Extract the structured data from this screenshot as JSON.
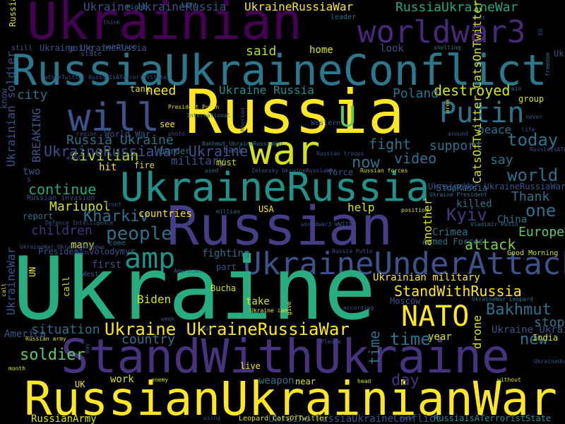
{
  "palette": {
    "background": "#000000",
    "purple": "#440154",
    "indigo": "#3b528b",
    "teal": "#21918c",
    "green": "#27ad81",
    "yellow": "#fde725"
  },
  "words": [
    {
      "id": "ukrainian",
      "text": "Ukrainian",
      "color": "#440154"
    },
    {
      "id": "worldwar3",
      "text": "worldwar3",
      "color": "#482878"
    },
    {
      "id": "russiaukraineconflict",
      "text": "RussiaUkraineConflict",
      "color": "#2a788e"
    },
    {
      "id": "russia",
      "text": "Russia",
      "color": "#fde725"
    },
    {
      "id": "war",
      "text": "war",
      "color": "#d5e21a"
    },
    {
      "id": "will",
      "text": "will",
      "color": "#3b528b"
    },
    {
      "id": "putin",
      "text": "Putin",
      "color": "#2c728e"
    },
    {
      "id": "u",
      "text": "U",
      "color": "#5ec962"
    },
    {
      "id": "ukrainerussia",
      "text": "UkraineRussia",
      "color": "#21918c"
    },
    {
      "id": "russian",
      "text": "Russian",
      "color": "#433e85"
    },
    {
      "id": "ukraineunderattack",
      "text": "UkraineUnderAttack",
      "color": "#3b528b"
    },
    {
      "id": "amp",
      "text": "amp",
      "color": "#21918c"
    },
    {
      "id": "ukraine",
      "text": "Ukraine",
      "color": "#27ad81"
    },
    {
      "id": "nato",
      "text": "NATO",
      "color": "#fde725"
    },
    {
      "id": "standwithukraine",
      "text": "StandWithUkraine",
      "color": "#46327e"
    },
    {
      "id": "russianukrainianwar",
      "text": "RussianUkrainianWar",
      "color": "#fde725"
    },
    {
      "id": "ukraine-ukrainerussiawar",
      "text": "Ukraine UkraineRussiaWar",
      "color": "#fde725"
    },
    {
      "id": "standwithrussia",
      "text": "StandWithRussia",
      "color": "#fde725"
    },
    {
      "id": "bakhmut",
      "text": "Bakhmut",
      "color": "#2c728e"
    },
    {
      "id": "people",
      "text": "people",
      "color": "#2c728e"
    },
    {
      "id": "said",
      "text": "said",
      "color": "#b5de2b"
    },
    {
      "id": "destroyed",
      "text": "destroyed",
      "color": "#d8e219"
    },
    {
      "id": "today",
      "text": "today",
      "color": "#2c728e"
    },
    {
      "id": "world",
      "text": "world",
      "color": "#2c728e"
    },
    {
      "id": "one",
      "text": "one",
      "color": "#2c728e"
    },
    {
      "id": "kyiv",
      "text": "Kyiv",
      "color": "#443983"
    },
    {
      "id": "europe",
      "text": "Europe",
      "color": "#5ec962"
    },
    {
      "id": "attack",
      "text": "attack",
      "color": "#7ad151"
    },
    {
      "id": "new",
      "text": "new",
      "color": "#2c728e"
    },
    {
      "id": "stop",
      "text": "stop",
      "color": "#2c728e"
    },
    {
      "id": "time",
      "text": "time",
      "color": "#2c728e"
    },
    {
      "id": "country",
      "text": "country",
      "color": "#2c728e"
    },
    {
      "id": "situation",
      "text": "situation",
      "color": "#2c728e"
    },
    {
      "id": "soldier",
      "text": "soldier",
      "color": "#5ec962"
    },
    {
      "id": "day",
      "text": "day",
      "color": "#46327e"
    },
    {
      "id": "children",
      "text": "children",
      "color": "#46327e"
    },
    {
      "id": "continue",
      "text": "continue",
      "color": "#22a884"
    },
    {
      "id": "civilian",
      "text": "civilian",
      "color": "#b5de2b"
    },
    {
      "id": "mariupol",
      "text": "Mariupol",
      "color": "#d8e219"
    },
    {
      "id": "kharkiv",
      "text": "Kharkiv",
      "color": "#2c728e"
    },
    {
      "id": "now",
      "text": "now",
      "color": "#2c728e"
    },
    {
      "id": "video",
      "text": "video",
      "color": "#2c728e"
    },
    {
      "id": "support",
      "text": "support",
      "color": "#2c728e"
    },
    {
      "id": "fight",
      "text": "fight",
      "color": "#2c728e"
    },
    {
      "id": "say",
      "text": "say",
      "color": "#2c728e"
    },
    {
      "id": "thank",
      "text": "Thank",
      "color": "#2c728e"
    },
    {
      "id": "peace",
      "text": "peace",
      "color": "#2c728e"
    },
    {
      "id": "need",
      "text": "need",
      "color": "#fde725"
    },
    {
      "id": "city",
      "text": "city",
      "color": "#2c728e"
    },
    {
      "id": "russia-ukraine",
      "text": "Russia Ukraine",
      "color": "#2c728e"
    },
    {
      "id": "ukraine-russia",
      "text": "Ukraine Russia",
      "color": "#21918c"
    },
    {
      "id": "russiaukrainewar",
      "text": "RussiaUkraineWar",
      "color": "#22a884"
    },
    {
      "id": "ukrainerussiawar",
      "text": "UkraineRussiaWar",
      "color": "#fde725"
    },
    {
      "id": "ukraine-ukrainerussia",
      "text": "Ukraine UkraineRussia",
      "color": "#3b528b"
    },
    {
      "id": "poland",
      "text": "Poland",
      "color": "#2c728e"
    },
    {
      "id": "two",
      "text": "two",
      "color": "#3b528b"
    },
    {
      "id": "breaking",
      "text": "BREAKING",
      "color": "#3b528b"
    },
    {
      "id": "military",
      "text": "military",
      "color": "#3b528b"
    },
    {
      "id": "help",
      "text": "help",
      "color": "#d8e219"
    },
    {
      "id": "killed",
      "text": "killed",
      "color": "#2c728e"
    },
    {
      "id": "crimea",
      "text": "Crimea",
      "color": "#2c728e"
    },
    {
      "id": "armed-forces",
      "text": "Armed Forces",
      "color": "#2c728e"
    },
    {
      "id": "fighting",
      "text": "fighting",
      "color": "#2c728e"
    },
    {
      "id": "biden",
      "text": "Biden",
      "color": "#d8e219"
    },
    {
      "id": "take",
      "text": "take",
      "color": "#d8e219"
    },
    {
      "id": "many",
      "text": "many",
      "color": "#d8e219"
    },
    {
      "id": "first",
      "text": "first",
      "color": "#3b528b"
    },
    {
      "id": "live",
      "text": "live",
      "color": "#fde725"
    },
    {
      "id": "uk",
      "text": "UK",
      "color": "#fde725"
    },
    {
      "id": "work",
      "text": "work",
      "color": "#d8e219"
    },
    {
      "id": "weapon",
      "text": "weapon",
      "color": "#2c728e"
    },
    {
      "id": "near",
      "text": "near",
      "color": "#d8e219"
    },
    {
      "id": "russianarmy",
      "text": "RussianArmy",
      "color": "#d8e219"
    },
    {
      "id": "ukraine-russiaukraineconflict",
      "text": "Ukraine RussiaUkraineConflict",
      "color": "#3b528b"
    },
    {
      "id": "russiaisaterroriststate",
      "text": "RussiaIsATerroristState",
      "color": "#21918c"
    },
    {
      "id": "ukrainian-military",
      "text": "Ukrainian military",
      "color": "#fde725"
    },
    {
      "id": "ukraine-ukraineunderattack",
      "text": "Ukraine UkraineUnderAttack",
      "color": "#3b528b"
    },
    {
      "id": "india",
      "text": "India",
      "color": "#d8e219"
    },
    {
      "id": "america",
      "text": "America",
      "color": "#3b528b"
    },
    {
      "id": "year",
      "text": "year",
      "color": "#d8e219"
    },
    {
      "id": "moscow",
      "text": "Moscow",
      "color": "#3b528b"
    },
    {
      "id": "president-volodymyr",
      "text": "President Volodymyr",
      "color": "#3b528b"
    },
    {
      "id": "report",
      "text": "report",
      "color": "#2c728e"
    },
    {
      "id": "countries",
      "text": "countries",
      "color": "#fde725"
    },
    {
      "id": "hit",
      "text": "hit",
      "color": "#fde725"
    },
    {
      "id": "fire",
      "text": "fire",
      "color": "#d8e219"
    },
    {
      "id": "must",
      "text": "must",
      "color": "#d8e219"
    },
    {
      "id": "force",
      "text": "force",
      "color": "#3b528b"
    },
    {
      "id": "back",
      "text": "back",
      "color": "#3b528b"
    },
    {
      "id": "usa",
      "text": "USA",
      "color": "#fde725"
    },
    {
      "id": "stoprussia",
      "text": "StopRussia",
      "color": "#2c728e"
    },
    {
      "id": "bucha",
      "text": "Bucha",
      "color": "#d8e219"
    },
    {
      "id": "part",
      "text": "part",
      "color": "#3b528b"
    },
    {
      "id": "home",
      "text": "home",
      "color": "#d8e219"
    },
    {
      "id": "look",
      "text": "look",
      "color": "#3b528b"
    },
    {
      "id": "want",
      "text": "want",
      "color": "#d8e219"
    },
    {
      "id": "ukraine-ukrainerussia-2",
      "text": "Ukraine UkraineRussia",
      "color": "#3b528b"
    },
    {
      "id": "going",
      "text": "going",
      "color": "#3b528b"
    },
    {
      "id": "tank",
      "text": "tank",
      "color": "#d8e219"
    },
    {
      "id": "see",
      "text": "see",
      "color": "#fde725"
    },
    {
      "id": "border",
      "text": "border",
      "color": "#2c728e"
    },
    {
      "id": "world-war",
      "text": "World War",
      "color": "#3b528b"
    },
    {
      "id": "group",
      "text": "group",
      "color": "#d8e219"
    },
    {
      "id": "china",
      "text": "China",
      "color": "#2c728e"
    },
    {
      "id": "area",
      "text": "area",
      "color": "#d8e219"
    },
    {
      "id": "left",
      "text": "left",
      "color": "#2c728e"
    },
    {
      "id": "right",
      "text": "right",
      "color": "#2c728e"
    },
    {
      "id": "leader",
      "text": "leader",
      "color": "#2c728e"
    },
    {
      "id": "russian-soldier",
      "text": "Russian soldier",
      "color": "#d8e219"
    },
    {
      "id": "still",
      "text": "still",
      "color": "#3b528b"
    },
    {
      "id": "state",
      "text": "state",
      "color": "#3b528b"
    },
    {
      "id": "sanction",
      "text": "sanction",
      "color": "#3b528b"
    },
    {
      "id": "ukrainewar-ukrainerussiawar",
      "text": "UkraineWar UkraineRussiaWar",
      "color": "#3b528b"
    },
    {
      "id": "ukrainerussiawar-ukraine",
      "text": "UkraineRussiaWar Ukraine",
      "color": "#3b528b"
    },
    {
      "id": "breaking-small",
      "text": "s",
      "color": "#3b528b"
    },
    {
      "id": "russian-invasion",
      "text": "Russian invasion",
      "color": "#3b528b"
    },
    {
      "id": "defence-intelligence",
      "text": "Defence Intelligence",
      "color": "#3b528b"
    },
    {
      "id": "catsoftwitter",
      "text": "CatsOfTwitter CatsOnTwitter",
      "color": "#d8e219"
    },
    {
      "id": "another",
      "text": "another",
      "color": "#d8e219"
    },
    {
      "id": "drone",
      "text": "drone",
      "color": "#d8e219"
    },
    {
      "id": "call",
      "text": "call",
      "color": "#d8e219"
    },
    {
      "id": "west",
      "text": "West",
      "color": "#3b528b"
    },
    {
      "id": "un",
      "text": "UN",
      "color": "#fde725"
    },
    {
      "id": "know",
      "text": "know",
      "color": "#3b528b"
    },
    {
      "id": "ukrainian-soldier",
      "text": "Ukrainian soldier",
      "color": "#3b528b"
    },
    {
      "id": "ukrainewar-vert",
      "text": "UkraineWar",
      "color": "#3b528b"
    },
    {
      "id": "ukraineunderattack-vert",
      "text": "UkraineUnderAttack",
      "color": "#3b528b"
    },
    {
      "id": "catsontwitter-vert",
      "text": "CatsOnTwitter RussiaIsATerroristState",
      "color": "#3b528b"
    },
    {
      "id": "eu",
      "text": "EU",
      "color": "#3b528b"
    },
    {
      "id": "freedom",
      "text": "freedom",
      "color": "#2c728e"
    },
    {
      "id": "shelling",
      "text": "shelling",
      "color": "#2c728e"
    },
    {
      "id": "train",
      "text": "train",
      "color": "#2c728e"
    },
    {
      "id": "russiaisaterroriststate-small",
      "text": "RussiaIsATerroristState UkraineWarNews",
      "color": "#3b528b"
    },
    {
      "id": "ukraine-president",
      "text": "Ukraine President",
      "color": "#2c728e"
    },
    {
      "id": "vladimir-putin",
      "text": "Vladimir Putin",
      "color": "#2c728e"
    },
    {
      "id": "ukrainewar-leopard",
      "text": "UkraineWar Leopard",
      "color": "#2c728e"
    },
    {
      "id": "good-morning",
      "text": "Good Morning",
      "color": "#d8e219"
    },
    {
      "id": "zelensky",
      "text": "Zelensky UkraineRussiaWar",
      "color": "#3b528b"
    },
    {
      "id": "russian-forces",
      "text": "Russian forces",
      "color": "#d8e219"
    },
    {
      "id": "russian-troops",
      "text": "Russian troops",
      "color": "#3b528b"
    },
    {
      "id": "bakhmut-small",
      "text": "Bakhmut UkraineRussiaWar",
      "color": "#2c728e"
    },
    {
      "id": "international",
      "text": "International",
      "color": "#2c728e"
    },
    {
      "id": "president-putin",
      "text": "President Putin",
      "color": "#d8e219"
    },
    {
      "id": "kherson",
      "text": "Kherson",
      "color": "#3b528b"
    },
    {
      "id": "western",
      "text": "Western",
      "color": "#3b528b"
    },
    {
      "id": "region",
      "text": "region",
      "color": "#3b528b"
    },
    {
      "id": "even",
      "text": "even",
      "color": "#3b528b"
    },
    {
      "id": "photo",
      "text": "photo",
      "color": "#3b528b"
    },
    {
      "id": "think",
      "text": "think",
      "color": "#3b528b"
    },
    {
      "id": "shot",
      "text": "shot",
      "color": "#3b528b"
    },
    {
      "id": "position",
      "text": "position",
      "color": "#d8e219"
    },
    {
      "id": "worldwar3-small",
      "text": "worldwar3 WWIII",
      "color": "#3b528b"
    },
    {
      "id": "million",
      "text": "million",
      "color": "#2c728e"
    },
    {
      "id": "used",
      "text": "used",
      "color": "#2c728e"
    },
    {
      "id": "front",
      "text": "front",
      "color": "#3b528b"
    },
    {
      "id": "much",
      "text": "much",
      "color": "#3b528b"
    },
    {
      "id": "russia-putin",
      "text": "Russia Putin",
      "color": "#3b528b"
    },
    {
      "id": "american",
      "text": "American",
      "color": "#3b528b"
    },
    {
      "id": "according",
      "text": "according",
      "color": "#3b528b"
    },
    {
      "id": "russian-army",
      "text": "Russian army",
      "color": "#d8e219"
    },
    {
      "id": "please",
      "text": "Please",
      "color": "#3b528b"
    },
    {
      "id": "enemy",
      "text": "enemy",
      "color": "#d8e219"
    },
    {
      "id": "head",
      "text": "head",
      "color": "#d8e219"
    },
    {
      "id": "leopard-cats",
      "text": "Leopard CatsOfTwitter",
      "color": "#d8e219"
    },
    {
      "id": "using",
      "text": "using",
      "color": "#3b528b"
    },
    {
      "id": "made",
      "text": "made",
      "color": "#3b528b"
    },
    {
      "id": "month",
      "text": "month",
      "color": "#d8e219"
    },
    {
      "id": "without",
      "text": "without",
      "color": "#d8e219"
    },
    {
      "id": "ukraineunderattack-small",
      "text": "UkraineUnderAttack",
      "color": "#3b528b"
    },
    {
      "id": "ukrainewarnews",
      "text": "UkraineWar UkraineWarNews",
      "color": "#3b528b"
    },
    {
      "id": "may",
      "text": "may",
      "color": "#3b528b"
    },
    {
      "id": "never",
      "text": "never",
      "color": "#3b528b"
    },
    {
      "id": "life",
      "text": "life",
      "color": "#3b528b"
    },
    {
      "id": "around",
      "text": "around",
      "color": "#3b528b"
    },
    {
      "id": "week",
      "text": "week",
      "color": "#3b528b"
    },
    {
      "id": "way",
      "text": "way",
      "color": "#3b528b"
    },
    {
      "id": "ukraine-ian",
      "text": "Ukraine ian",
      "color": "#fde725"
    },
    {
      "id": "give",
      "text": "give",
      "color": "#fde725"
    },
    {
      "id": "come",
      "text": "come",
      "color": "#2c728e"
    },
    {
      "id": "talk",
      "text": "talk",
      "color": "#2c728e"
    },
    {
      "id": "lot",
      "text": "lot",
      "color": "#2c728e"
    },
    {
      "id": "end",
      "text": "end",
      "color": "#d8e219"
    }
  ]
}
